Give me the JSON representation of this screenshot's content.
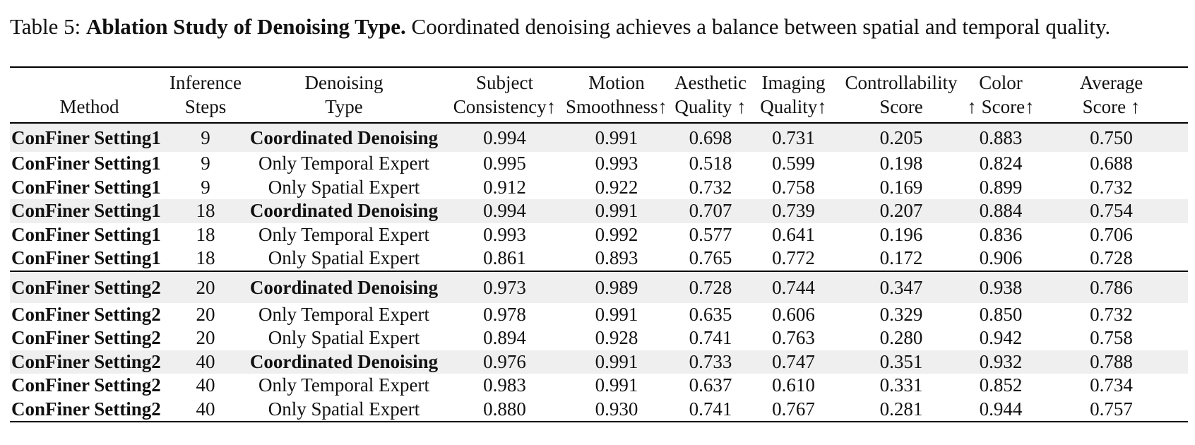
{
  "caption": {
    "label": "Table 5:",
    "title": "Ablation Study of Denoising Type.",
    "text": "Coordinated denoising achieves a balance between spatial and temporal quality."
  },
  "table": {
    "headers": [
      {
        "line1": "",
        "line2": "Method"
      },
      {
        "line1": "Inference",
        "line2": "Steps"
      },
      {
        "line1": "Denoising",
        "line2": "Type"
      },
      {
        "line1": "Subject",
        "line2": "Consistency↑"
      },
      {
        "line1": "Motion",
        "line2": "Smoothness↑"
      },
      {
        "line1": "Aesthetic",
        "line2": "Quality ↑"
      },
      {
        "line1": "Imaging",
        "line2": "Quality↑"
      },
      {
        "line1": "Controllability",
        "line2": "Score"
      },
      {
        "line1": "Color",
        "line2": "↑ Score↑"
      },
      {
        "line1": "Average",
        "line2": "Score ↑"
      }
    ],
    "groups": [
      [
        {
          "method": "ConFiner Setting1",
          "steps": "9",
          "type": "Coordinated Denoising",
          "subject": "0.994",
          "motion": "0.991",
          "aesthetic": "0.698",
          "imaging": "0.731",
          "control": "0.205",
          "color": "0.883",
          "average": "0.750"
        },
        {
          "method": "ConFiner Setting1",
          "steps": "9",
          "type": "Only Temporal Expert",
          "subject": "0.995",
          "motion": "0.993",
          "aesthetic": "0.518",
          "imaging": "0.599",
          "control": "0.198",
          "color": "0.824",
          "average": "0.688"
        },
        {
          "method": "ConFiner Setting1",
          "steps": "9",
          "type": "Only Spatial Expert",
          "subject": "0.912",
          "motion": "0.922",
          "aesthetic": "0.732",
          "imaging": "0.758",
          "control": "0.169",
          "color": "0.899",
          "average": "0.732"
        },
        {
          "method": "ConFiner Setting1",
          "steps": "18",
          "type": "Coordinated Denoising",
          "subject": "0.994",
          "motion": "0.991",
          "aesthetic": "0.707",
          "imaging": "0.739",
          "control": "0.207",
          "color": "0.884",
          "average": "0.754"
        },
        {
          "method": "ConFiner Setting1",
          "steps": "18",
          "type": "Only Temporal Expert",
          "subject": "0.993",
          "motion": "0.992",
          "aesthetic": "0.577",
          "imaging": "0.641",
          "control": "0.196",
          "color": "0.836",
          "average": "0.706"
        },
        {
          "method": "ConFiner Setting1",
          "steps": "18",
          "type": "Only Spatial Expert",
          "subject": "0.861",
          "motion": "0.893",
          "aesthetic": "0.765",
          "imaging": "0.772",
          "control": "0.172",
          "color": "0.906",
          "average": "0.728"
        }
      ],
      [
        {
          "method": "ConFiner Setting2",
          "steps": "20",
          "type": "Coordinated Denoising",
          "subject": "0.973",
          "motion": "0.989",
          "aesthetic": "0.728",
          "imaging": "0.744",
          "control": "0.347",
          "color": "0.938",
          "average": "0.786"
        },
        {
          "method": "ConFiner Setting2",
          "steps": "20",
          "type": "Only Temporal Expert",
          "subject": "0.978",
          "motion": "0.991",
          "aesthetic": "0.635",
          "imaging": "0.606",
          "control": "0.329",
          "color": "0.850",
          "average": "0.732"
        },
        {
          "method": "ConFiner Setting2",
          "steps": "20",
          "type": "Only Spatial Expert",
          "subject": "0.894",
          "motion": "0.928",
          "aesthetic": "0.741",
          "imaging": "0.763",
          "control": "0.280",
          "color": "0.942",
          "average": "0.758"
        },
        {
          "method": "ConFiner Setting2",
          "steps": "40",
          "type": "Coordinated Denoising",
          "subject": "0.976",
          "motion": "0.991",
          "aesthetic": "0.733",
          "imaging": "0.747",
          "control": "0.351",
          "color": "0.932",
          "average": "0.788"
        },
        {
          "method": "ConFiner Setting2",
          "steps": "40",
          "type": "Only Temporal Expert",
          "subject": "0.983",
          "motion": "0.991",
          "aesthetic": "0.637",
          "imaging": "0.610",
          "control": "0.331",
          "color": "0.852",
          "average": "0.734"
        },
        {
          "method": "ConFiner Setting2",
          "steps": "40",
          "type": "Only Spatial Expert",
          "subject": "0.880",
          "motion": "0.930",
          "aesthetic": "0.741",
          "imaging": "0.767",
          "control": "0.281",
          "color": "0.944",
          "average": "0.757"
        }
      ]
    ],
    "highlight_color": "#efefef"
  }
}
